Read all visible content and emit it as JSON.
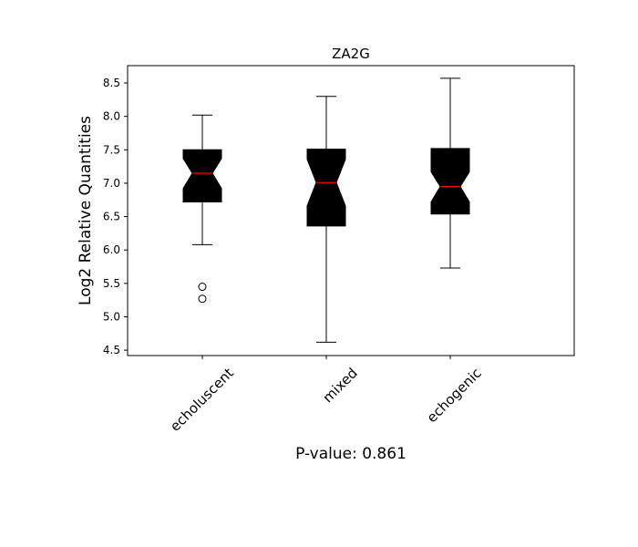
{
  "chart_data": {
    "type": "boxplot",
    "title": "ZA2G",
    "xlabel": "P-value: 0.861",
    "ylabel": "Log2 Relative Quantities",
    "categories": [
      "echoluscent",
      "mixed",
      "echogenic"
    ],
    "ylim": [
      4.42,
      8.76
    ],
    "yticks": [
      4.5,
      5.0,
      5.5,
      6.0,
      6.5,
      7.0,
      7.5,
      8.0,
      8.5
    ],
    "ytick_labels": [
      "4.5",
      "5.0",
      "5.5",
      "6.0",
      "6.5",
      "7.0",
      "7.5",
      "8.0",
      "8.5"
    ],
    "notched": true,
    "grid": false,
    "box_color": "#000000",
    "median_color": "#ff0000",
    "boxes": [
      {
        "name": "echoluscent",
        "whisker_low": 6.08,
        "q1": 6.72,
        "median": 7.15,
        "q3": 7.5,
        "whisker_high": 8.02,
        "notch_low": 6.92,
        "notch_high": 7.37,
        "outliers": [
          5.45,
          5.27
        ]
      },
      {
        "name": "mixed",
        "whisker_low": 4.62,
        "q1": 6.36,
        "median": 7.01,
        "q3": 7.51,
        "whisker_high": 8.3,
        "notch_low": 6.66,
        "notch_high": 7.36,
        "outliers": []
      },
      {
        "name": "echogenic",
        "whisker_low": 5.73,
        "q1": 6.54,
        "median": 6.95,
        "q3": 7.52,
        "whisker_high": 8.57,
        "notch_low": 6.72,
        "notch_high": 7.17,
        "outliers": []
      }
    ]
  }
}
